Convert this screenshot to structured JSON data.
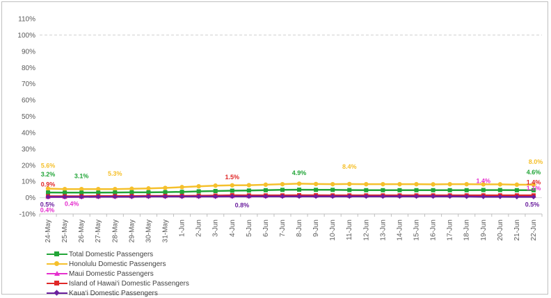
{
  "chart_data": {
    "type": "line",
    "categories": [
      "24-May",
      "25-May",
      "26-May",
      "27-May",
      "28-May",
      "29-May",
      "30-May",
      "31-May",
      "1-Jun",
      "2-Jun",
      "3-Jun",
      "4-Jun",
      "5-Jun",
      "6-Jun",
      "7-Jun",
      "8-Jun",
      "9-Jun",
      "10-Jun",
      "11-Jun",
      "12-Jun",
      "13-Jun",
      "14-Jun",
      "15-Jun",
      "16-Jun",
      "17-Jun",
      "18-Jun",
      "19-Jun",
      "20-Jun",
      "21-Jun",
      "22-Jun"
    ],
    "ylim": [
      -10,
      110
    ],
    "yticks": [
      "-10%",
      "0%",
      "10%",
      "20%",
      "30%",
      "40%",
      "50%",
      "60%",
      "70%",
      "80%",
      "90%",
      "100%",
      "110%"
    ],
    "reference_line": 100,
    "legend_position": "bottom-left",
    "series": [
      {
        "name": "Total Domestic Passengers",
        "color": "#22a538",
        "marker": "square",
        "values": [
          3.2,
          3.1,
          3.1,
          3.1,
          3.2,
          3.3,
          3.3,
          3.4,
          3.6,
          3.9,
          4.1,
          4.3,
          4.4,
          4.6,
          4.8,
          4.9,
          4.8,
          4.8,
          4.7,
          4.6,
          4.6,
          4.6,
          4.6,
          4.6,
          4.6,
          4.6,
          4.7,
          4.7,
          4.6,
          4.6
        ]
      },
      {
        "name": "Honolulu Domestic Passengers",
        "color": "#f5c02c",
        "marker": "circle",
        "values": [
          5.6,
          5.3,
          5.3,
          5.3,
          5.3,
          5.5,
          5.7,
          6.0,
          6.5,
          7.0,
          7.4,
          7.6,
          7.7,
          8.0,
          8.3,
          8.6,
          8.4,
          8.3,
          8.4,
          8.3,
          8.3,
          8.3,
          8.3,
          8.2,
          8.3,
          8.3,
          8.2,
          8.2,
          8.0,
          8.0
        ]
      },
      {
        "name": "Maui Domestic Passengers",
        "color": "#e52fce",
        "marker": "triangle",
        "values": [
          0.4,
          0.4,
          0.5,
          0.6,
          0.7,
          0.8,
          0.8,
          0.8,
          0.8,
          0.8,
          0.8,
          0.8,
          0.8,
          0.9,
          1.0,
          1.1,
          1.1,
          1.1,
          1.1,
          1.2,
          1.2,
          1.2,
          1.2,
          1.3,
          1.3,
          1.3,
          1.4,
          1.3,
          1.2,
          1.1
        ]
      },
      {
        "name": "Island of Hawai‘i Domestic Passengers",
        "color": "#e02828",
        "marker": "square",
        "values": [
          0.9,
          0.9,
          0.9,
          1.0,
          1.0,
          1.0,
          1.1,
          1.1,
          1.1,
          1.2,
          1.3,
          1.5,
          1.4,
          1.4,
          1.4,
          1.5,
          1.5,
          1.4,
          1.4,
          1.4,
          1.4,
          1.4,
          1.4,
          1.4,
          1.4,
          1.4,
          1.4,
          1.4,
          1.4,
          1.4
        ]
      },
      {
        "name": "Kaua‘i Domestic Passengers",
        "color": "#6b1f9e",
        "marker": "diamond",
        "values": [
          0.5,
          0.5,
          0.5,
          0.6,
          0.6,
          0.6,
          0.7,
          0.7,
          0.7,
          0.7,
          0.7,
          0.8,
          0.8,
          0.8,
          0.8,
          0.8,
          0.8,
          0.8,
          0.8,
          0.8,
          0.8,
          0.8,
          0.8,
          0.8,
          0.8,
          0.7,
          0.6,
          0.6,
          0.5,
          0.5
        ]
      }
    ],
    "data_labels": [
      {
        "series": 1,
        "index": 0,
        "text": "5.6%"
      },
      {
        "series": 0,
        "index": 0,
        "text": "3.2%"
      },
      {
        "series": 3,
        "index": 0,
        "text": "0.9%"
      },
      {
        "series": 4,
        "index": 0,
        "text": "0.5%"
      },
      {
        "series": 2,
        "index": 0,
        "text": "0.4%"
      },
      {
        "series": 2,
        "index": 1,
        "text": "0.4%"
      },
      {
        "series": 0,
        "index": 2,
        "text": "3.1%"
      },
      {
        "series": 1,
        "index": 4,
        "text": "5.3%"
      },
      {
        "series": 3,
        "index": 11,
        "text": "1.5%"
      },
      {
        "series": 4,
        "index": 12,
        "text": "0.8%"
      },
      {
        "series": 0,
        "index": 15,
        "text": "4.9%"
      },
      {
        "series": 1,
        "index": 18,
        "text": "8.4%"
      },
      {
        "series": 2,
        "index": 26,
        "text": "1.4%"
      },
      {
        "series": 1,
        "index": 29,
        "text": "8.0%"
      },
      {
        "series": 0,
        "index": 29,
        "text": "4.6%"
      },
      {
        "series": 3,
        "index": 29,
        "text": "1.4%"
      },
      {
        "series": 2,
        "index": 29,
        "text": "1.1%"
      },
      {
        "series": 4,
        "index": 29,
        "text": "0.5%"
      }
    ]
  }
}
